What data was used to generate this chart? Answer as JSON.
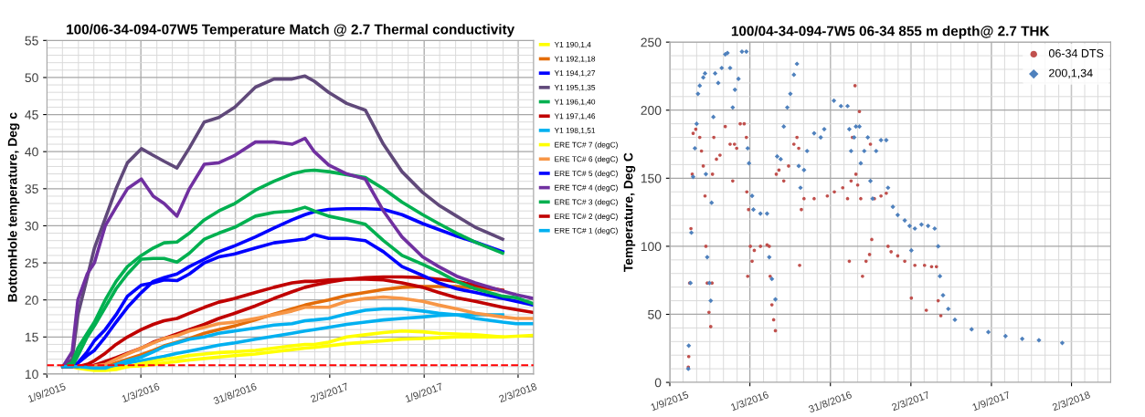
{
  "chart_data": [
    {
      "type": "line",
      "title": "100/06-34-094-07W5 Temperature Match @ 2.7 Thermal conductivity",
      "ylabel": "BottomHole temperature, Deg c",
      "x": [
        "2015-10-02",
        "2015-10-20",
        "2015-10-31",
        "2015-11-18",
        "2015-12-02",
        "2015-12-23",
        "2016-01-13",
        "2016-02-04",
        "2016-03-02",
        "2016-03-25",
        "2016-04-15",
        "2016-05-10",
        "2016-06-03",
        "2016-07-02",
        "2016-07-30",
        "2016-08-30",
        "2016-10-09",
        "2016-11-14",
        "2016-12-19",
        "2017-01-13",
        "2017-01-31",
        "2017-02-28",
        "2017-04-04",
        "2017-05-10",
        "2017-06-14",
        "2017-07-20",
        "2017-08-29",
        "2017-09-29",
        "2017-11-03",
        "2017-12-09",
        "2018-01-31",
        "2018-02-26",
        "2018-04-01"
      ],
      "xlim": [
        "2015-09-01",
        "2018-04-01"
      ],
      "xticks": [
        {
          "value": "2015-09-01",
          "label": "1/9/2015"
        },
        {
          "value": "2016-03-01",
          "label": "1/3/2016"
        },
        {
          "value": "2016-08-31",
          "label": "31/8/2016"
        },
        {
          "value": "2017-03-02",
          "label": "2/3/2017"
        },
        {
          "value": "2017-09-01",
          "label": "1/9/2017"
        },
        {
          "value": "2018-03-02",
          "label": "2/3/2018"
        }
      ],
      "ylim": [
        10,
        55
      ],
      "yticks": [
        10,
        15,
        20,
        25,
        30,
        35,
        40,
        45,
        50,
        55
      ],
      "grid": true,
      "legend": "right",
      "marker": "none",
      "line_style": "solid",
      "ref_lines": [
        {
          "axis": "y",
          "value": 11.2,
          "color": "#ff0000",
          "line_style": "dashed"
        }
      ],
      "series": [
        {
          "name": "Y1 190,1,4",
          "color": "#ffff00",
          "values": [
            null,
            11,
            11,
            10.9,
            10.9,
            10.9,
            10.8,
            11,
            11.1,
            11.3,
            11.5,
            11.7,
            11.9,
            12.1,
            12.3,
            12.5,
            12.7,
            13,
            13.3,
            13.5,
            13.6,
            13.8,
            14.1,
            14.3,
            14.5,
            14.7,
            14.8,
            14.9,
            15,
            15,
            15,
            null,
            null
          ]
        },
        {
          "name": "Y1 192,1,18",
          "color": "#e36c09",
          "values": [
            null,
            null,
            null,
            11,
            11,
            11,
            11.5,
            12,
            12.6,
            13.2,
            13.8,
            14.3,
            14.8,
            15.5,
            16,
            16.5,
            17.3,
            18.1,
            18.8,
            19.3,
            19.6,
            20,
            20.6,
            21,
            21.4,
            21.7,
            21.8,
            21.8,
            21.8,
            21.6,
            21.3,
            null,
            null
          ]
        },
        {
          "name": "Y1 194,1,27",
          "color": "#0000ff",
          "values": [
            11,
            11,
            11.5,
            12.5,
            13.2,
            15,
            17,
            19,
            21,
            22.5,
            23,
            23.5,
            24.5,
            25.5,
            26.5,
            27.3,
            28.5,
            29.7,
            30.8,
            31.5,
            31.9,
            32.2,
            32.3,
            32.3,
            32.2,
            31.5,
            30.3,
            29.5,
            28.6,
            27.8,
            26.5,
            null,
            null
          ]
        },
        {
          "name": "Y1 195,1,35",
          "color": "#60497a",
          "values": [
            11,
            12,
            18,
            23,
            27,
            31,
            35,
            38.5,
            40.4,
            39.5,
            38.7,
            37.8,
            40.5,
            44,
            44.6,
            46,
            48.7,
            49.8,
            49.8,
            50.2,
            49.5,
            48,
            46.5,
            45.6,
            41,
            37.3,
            34.5,
            32.8,
            31.3,
            29.8,
            28.2,
            null,
            null
          ]
        },
        {
          "name": "Y1 196,1,40",
          "color": "#00b050",
          "values": [
            11,
            11.5,
            13.5,
            15.5,
            17,
            20,
            22.5,
            24.5,
            26,
            27,
            27.7,
            27.8,
            29,
            30.8,
            32,
            33,
            34.8,
            36,
            37,
            37.4,
            37.5,
            37.3,
            36.9,
            36.5,
            35,
            33.2,
            31.5,
            30.3,
            29,
            27.8,
            26.3,
            null,
            null
          ]
        },
        {
          "name": "Y1 197,1,46",
          "color": "#c00000",
          "values": [
            11,
            11,
            11,
            11,
            11.2,
            11.7,
            12.2,
            12.8,
            13.5,
            14.3,
            14.8,
            15.4,
            16,
            16.7,
            17.5,
            18.2,
            19.2,
            20.2,
            21.1,
            21.7,
            22,
            22.4,
            22.8,
            23,
            23.1,
            23.1,
            23,
            22.8,
            22.5,
            22,
            21.3,
            null,
            null
          ]
        },
        {
          "name": "Y1 198,1,51",
          "color": "#00b0f0",
          "values": [
            11,
            11,
            11,
            11,
            11,
            11,
            11.2,
            11.5,
            11.8,
            12.1,
            12.4,
            12.8,
            13.1,
            13.5,
            13.9,
            14.2,
            14.7,
            15.1,
            15.5,
            15.8,
            16,
            16.3,
            16.7,
            17,
            17.3,
            17.5,
            17.7,
            17.9,
            18,
            18,
            18,
            null,
            null
          ]
        },
        {
          "name": "ERE TC# 7 (degC)",
          "color": "#ffff00",
          "values": [
            null,
            11,
            10.8,
            10.6,
            10.5,
            10.5,
            10.6,
            11,
            11.4,
            11.7,
            12,
            12.2,
            12.5,
            12.7,
            12.9,
            13,
            13.2,
            13.5,
            13.8,
            14,
            14,
            14.3,
            15,
            15.3,
            15.6,
            15.8,
            15.7,
            15.5,
            15.4,
            15.3,
            15,
            15.1,
            15.2
          ]
        },
        {
          "name": "ERE TC# 6 (degC)",
          "color": "#f79646",
          "values": [
            null,
            null,
            null,
            11,
            11.1,
            11.3,
            12,
            12.7,
            13.5,
            14.2,
            14.8,
            15.2,
            15.8,
            16.3,
            16.8,
            17,
            17.5,
            18,
            18.5,
            19,
            19,
            19,
            19.8,
            20.2,
            20.4,
            20.2,
            19.8,
            19.3,
            18.8,
            18.2,
            17.7,
            17.5,
            17.5
          ]
        },
        {
          "name": "ERE TC# 5 (degC)",
          "color": "#0000ff",
          "values": [
            11,
            11,
            11.5,
            13,
            14.5,
            16,
            18,
            20.5,
            22,
            22.3,
            22.7,
            22.6,
            23.5,
            25,
            25.8,
            26.2,
            27,
            27.7,
            28,
            28.2,
            28.8,
            28.3,
            28.3,
            28,
            26.5,
            24.5,
            23.3,
            22.3,
            21.5,
            21,
            20.2,
            19.8,
            19.3
          ]
        },
        {
          "name": "ERE TC# 4 (degC)",
          "color": "#7030a0",
          "values": [
            11,
            13,
            20,
            23.5,
            25,
            30,
            32.5,
            35,
            36.3,
            34,
            33,
            31.3,
            35,
            38.3,
            38.5,
            39.5,
            41.3,
            41.3,
            41,
            41.8,
            40,
            38.2,
            37,
            36.3,
            32,
            28.5,
            25.8,
            24.5,
            23.2,
            22.3,
            21.2,
            20.7,
            20.2
          ]
        },
        {
          "name": "ERE TC# 3 (degC)",
          "color": "#00b050",
          "values": [
            11,
            11,
            12.5,
            15,
            16.5,
            19,
            21.5,
            23.5,
            25.5,
            25.6,
            25.6,
            25.1,
            26.3,
            28.2,
            29,
            29.8,
            31.3,
            31.8,
            32,
            32.5,
            32,
            31.3,
            30.8,
            30.2,
            28,
            26,
            24.8,
            23.8,
            22.5,
            21.5,
            20.5,
            20.3,
            19.5
          ]
        },
        {
          "name": "ERE TC# 2 (degC)",
          "color": "#c00000",
          "values": [
            11,
            11,
            11,
            11.3,
            11.8,
            12.8,
            14,
            15,
            16,
            16.7,
            17.2,
            17.5,
            18.2,
            19,
            19.7,
            20.2,
            21,
            21.7,
            22.3,
            22.5,
            22.5,
            22.7,
            22.8,
            22.8,
            22.7,
            22.3,
            21.7,
            21,
            20.3,
            19.8,
            19,
            18.7,
            18.3
          ]
        },
        {
          "name": "ERE TC# 1 (degC)",
          "color": "#00b0f0",
          "values": [
            11,
            11,
            11,
            10.9,
            10.8,
            10.8,
            11.3,
            11.8,
            12.3,
            13,
            13.7,
            14.2,
            14.7,
            15,
            15.5,
            15.8,
            16.2,
            16.6,
            16.8,
            17.2,
            17.3,
            17.5,
            18.1,
            18.6,
            18.8,
            18.8,
            18.5,
            18.2,
            18,
            17.5,
            17,
            16.8,
            16.8
          ]
        }
      ]
    },
    {
      "type": "scatter",
      "title": "100/04-34-094-7W5 06-34 855 m depth@ 2.7 THK",
      "ylabel": "Temperature, Deg C",
      "xlim": [
        "2015-09-01",
        "2018-05-30"
      ],
      "xticks": [
        {
          "value": "2015-09-01",
          "label": "1/9/2015"
        },
        {
          "value": "2016-03-01",
          "label": "1/3/2016"
        },
        {
          "value": "2016-08-31",
          "label": "31/8/2016"
        },
        {
          "value": "2017-03-02",
          "label": "2/3/2017"
        },
        {
          "value": "2017-09-01",
          "label": "1/9/2017"
        },
        {
          "value": "2018-03-02",
          "label": "2/3/2018"
        }
      ],
      "ylim": [
        0,
        250
      ],
      "yticks": [
        0,
        50,
        100,
        150,
        200,
        250
      ],
      "grid": true,
      "legend": "top right",
      "series": [
        {
          "name": "06-34 DTS",
          "color": "#c0504d",
          "marker": "circle",
          "x": [
            "2015-10-13",
            "2015-10-14",
            "2015-10-16",
            "2015-10-19",
            "2015-10-22",
            "2015-10-24",
            "2015-10-30",
            "2015-11-08",
            "2015-11-12",
            "2015-11-16",
            "2015-11-20",
            "2015-11-22",
            "2015-11-25",
            "2015-11-29",
            "2015-12-03",
            "2015-12-06",
            "2015-12-07",
            "2015-12-10",
            "2015-12-16",
            "2015-12-24",
            "2016-01-05",
            "2016-01-16",
            "2016-01-22",
            "2016-01-26",
            "2016-01-31",
            "2016-02-08",
            "2016-02-17",
            "2016-02-22",
            "2016-02-23",
            "2016-02-25",
            "2016-02-27",
            "2016-03-02",
            "2016-03-06",
            "2016-03-11",
            "2016-03-25",
            "2016-04-09",
            "2016-04-14",
            "2016-04-16",
            "2016-04-20",
            "2016-04-24",
            "2016-04-28",
            "2016-04-30",
            "2016-05-06",
            "2016-05-17",
            "2016-05-28",
            "2016-06-09",
            "2016-06-16",
            "2016-06-20",
            "2016-06-22",
            "2016-06-26",
            "2016-07-02",
            "2016-07-25",
            "2016-08-24",
            "2016-09-09",
            "2016-09-28",
            "2016-10-09",
            "2016-10-13",
            "2016-10-17",
            "2016-10-20",
            "2016-10-26",
            "2016-10-28",
            "2016-11-01",
            "2016-11-05",
            "2016-11-08",
            "2016-11-12",
            "2016-11-20",
            "2016-11-28",
            "2016-11-30",
            "2016-12-03",
            "2016-12-09",
            "2016-12-24",
            "2017-01-05",
            "2017-01-09",
            "2017-01-16",
            "2017-01-31",
            "2017-02-16",
            "2017-03-03",
            "2017-03-11",
            "2017-04-02",
            "2017-04-06",
            "2017-04-18",
            "2017-04-29",
            "2017-05-03",
            "2017-05-09"
          ],
          "values": [
            11.3,
            19,
            73,
            113,
            153,
            183,
            186,
            180,
            170,
            159,
            137,
            100,
            73,
            51.5,
            41,
            73,
            153,
            180,
            164,
            167,
            188,
            175,
            148,
            175,
            172,
            190,
            190,
            180,
            140,
            78,
            127,
            100,
            89,
            97,
            100,
            101,
            100,
            78,
            57,
            46,
            38,
            153,
            156,
            148,
            159,
            175,
            180,
            172,
            86,
            127,
            135,
            135,
            137,
            140,
            143,
            135,
            89,
            148,
            180,
            218,
            153,
            145,
            199,
            135,
            78,
            89,
            94,
            175,
            105,
            135,
            137,
            139,
            100,
            96,
            93,
            89,
            62,
            86,
            86,
            53,
            85,
            85,
            60,
            49
          ]
        },
        {
          "name": "200,1,34",
          "color": "#4f81bd",
          "marker": "diamond",
          "x": [
            "2015-10-13",
            "2015-10-14",
            "2015-10-18",
            "2015-10-20",
            "2015-10-24",
            "2015-10-28",
            "2015-11-01",
            "2015-11-04",
            "2015-11-08",
            "2015-11-16",
            "2015-11-20",
            "2015-11-22",
            "2015-11-25",
            "2015-11-30",
            "2015-12-03",
            "2015-12-05",
            "2015-12-09",
            "2015-12-13",
            "2015-12-20",
            "2015-12-28",
            "2016-01-05",
            "2016-01-10",
            "2016-01-16",
            "2016-01-22",
            "2016-01-27",
            "2016-02-04",
            "2016-02-12",
            "2016-02-22",
            "2016-02-25",
            "2016-02-28",
            "2016-03-06",
            "2016-03-09",
            "2016-03-25",
            "2016-04-09",
            "2016-04-14",
            "2016-04-20",
            "2016-04-28",
            "2016-05-02",
            "2016-05-10",
            "2016-05-17",
            "2016-05-25",
            "2016-06-01",
            "2016-06-09",
            "2016-06-16",
            "2016-06-20",
            "2016-06-24",
            "2016-07-02",
            "2016-07-09",
            "2016-07-25",
            "2016-08-09",
            "2016-08-17",
            "2016-09-08",
            "2016-09-24",
            "2016-10-09",
            "2016-10-13",
            "2016-10-17",
            "2016-10-24",
            "2016-10-28",
            "2016-11-05",
            "2016-11-08",
            "2016-11-16",
            "2016-11-24",
            "2016-11-30",
            "2016-12-05",
            "2016-12-13",
            "2016-12-24",
            "2017-01-05",
            "2017-01-09",
            "2017-01-20",
            "2017-01-31",
            "2017-02-16",
            "2017-02-27",
            "2017-03-03",
            "2017-03-11",
            "2017-03-26",
            "2017-04-10",
            "2017-04-25",
            "2017-05-03",
            "2017-05-07",
            "2017-05-14",
            "2017-05-26",
            "2017-06-10",
            "2017-07-18",
            "2017-08-25",
            "2017-10-03",
            "2017-11-10",
            "2017-12-18",
            "2018-02-09"
          ],
          "values": [
            10,
            27,
            73,
            110,
            151,
            172,
            190,
            212,
            218,
            224,
            227,
            153,
            92,
            73,
            60,
            132,
            195,
            227,
            220,
            231,
            241,
            242,
            231,
            202,
            215,
            223,
            243,
            243,
            172,
            161,
            137,
            127,
            124,
            124,
            92,
            76,
            61,
            166,
            164,
            188,
            202,
            212,
            226,
            234,
            159,
            143,
            156,
            170,
            183,
            180,
            186,
            207,
            203,
            203,
            186,
            170,
            180,
            188,
            188,
            161,
            170,
            180,
            148,
            135,
            170,
            178,
            178,
            143,
            129,
            123,
            119,
            115,
            97,
            113,
            116,
            115,
            113,
            100,
            78,
            64,
            54,
            46,
            39,
            37,
            34,
            32,
            31,
            29
          ]
        }
      ]
    }
  ]
}
